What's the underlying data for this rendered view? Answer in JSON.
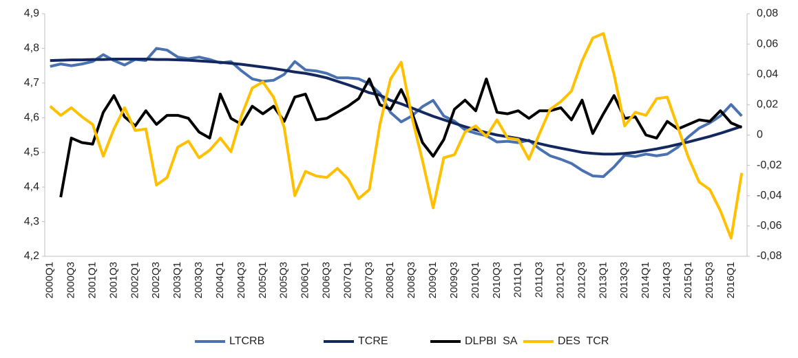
{
  "chart_data": {
    "type": "line",
    "categories": [
      "2000Q1",
      null,
      "2000Q3",
      null,
      "2001Q1",
      null,
      "2001Q3",
      null,
      "2002Q1",
      null,
      "2002Q3",
      null,
      "2003Q1",
      null,
      "2003Q3",
      null,
      "2004Q1",
      null,
      "2004Q3",
      null,
      "2005Q1",
      null,
      "2005Q3",
      null,
      "2006Q1",
      null,
      "2006Q3",
      null,
      "2007Q1",
      null,
      "2007Q3",
      null,
      "2008Q1",
      null,
      "2008Q3",
      null,
      "2009Q1",
      null,
      "2009Q3",
      null,
      "2010Q1",
      null,
      "2010Q3",
      null,
      "2011Q1",
      null,
      "2011Q3",
      null,
      "2012Q1",
      null,
      "2012Q3",
      null,
      "2013Q1",
      null,
      "2013Q3",
      null,
      "2014Q1",
      null,
      "2014Q3",
      null,
      "2015Q1",
      null,
      "2015Q3",
      null,
      "2016Q1",
      null
    ],
    "ylim": [
      4.2,
      4.9
    ],
    "yticks": [
      {
        "value": 4.2,
        "label": "4,2"
      },
      {
        "value": 4.3,
        "label": "4,3"
      },
      {
        "value": 4.4,
        "label": "4,4"
      },
      {
        "value": 4.5,
        "label": "4,5"
      },
      {
        "value": 4.6,
        "label": "4,6"
      },
      {
        "value": 4.7,
        "label": "4,7"
      },
      {
        "value": 4.8,
        "label": "4,8"
      },
      {
        "value": 4.9,
        "label": "4,9"
      }
    ],
    "y2lim": [
      -0.08,
      0.08
    ],
    "y2ticks": [
      {
        "value": -0.08,
        "label": "-0,08"
      },
      {
        "value": -0.06,
        "label": "-0,06"
      },
      {
        "value": -0.04,
        "label": "-0,04"
      },
      {
        "value": -0.02,
        "label": "-0,02"
      },
      0,
      {
        "value": 0.02,
        "label": "0,02"
      },
      {
        "value": 0.04,
        "label": "0,04"
      },
      {
        "value": 0.06,
        "label": "0,06"
      },
      {
        "value": 0.08,
        "label": "0,08"
      }
    ],
    "grid": false,
    "legend": "bottom",
    "series": [
      {
        "name": "LTCRB",
        "color": "#4a72b0",
        "axis": "y",
        "values": [
          4.748,
          4.755,
          4.75,
          4.755,
          4.762,
          4.782,
          4.765,
          4.752,
          4.768,
          4.765,
          4.8,
          4.795,
          4.775,
          4.77,
          4.775,
          4.768,
          4.758,
          4.762,
          4.735,
          4.712,
          4.705,
          4.708,
          4.725,
          4.762,
          4.738,
          4.735,
          4.728,
          4.715,
          4.715,
          4.712,
          4.698,
          4.67,
          4.615,
          4.588,
          4.605,
          4.632,
          4.65,
          4.605,
          4.59,
          4.565,
          4.555,
          4.548,
          4.53,
          4.532,
          4.528,
          4.535,
          4.51,
          4.49,
          4.48,
          4.468,
          4.448,
          4.432,
          4.43,
          4.458,
          4.492,
          4.488,
          4.495,
          4.49,
          4.495,
          4.515,
          4.545,
          4.57,
          4.585,
          4.605,
          4.638,
          4.605
        ]
      },
      {
        "name": "TCRE",
        "color": "#13285e",
        "axis": "y",
        "values": [
          4.765,
          4.766,
          4.767,
          4.767,
          4.768,
          4.768,
          4.769,
          4.769,
          4.769,
          4.769,
          4.768,
          4.768,
          4.767,
          4.766,
          4.764,
          4.762,
          4.76,
          4.757,
          4.754,
          4.75,
          4.746,
          4.742,
          4.737,
          4.732,
          4.728,
          4.722,
          4.715,
          4.705,
          4.695,
          4.684,
          4.672,
          4.665,
          4.65,
          4.64,
          4.628,
          4.616,
          4.604,
          4.594,
          4.584,
          4.574,
          4.565,
          4.557,
          4.55,
          4.545,
          4.54,
          4.533,
          4.525,
          4.518,
          4.512,
          4.506,
          4.5,
          4.497,
          4.495,
          4.495,
          4.497,
          4.5,
          4.505,
          4.51,
          4.516,
          4.523,
          4.53,
          4.538,
          4.546,
          4.555,
          4.565,
          4.575
        ]
      },
      {
        "name": "DLPBI  SA",
        "color": "#000000",
        "axis": "y2",
        "values": [
          null,
          -0.041,
          -0.002,
          -0.005,
          -0.006,
          0.015,
          0.026,
          0.012,
          0.006,
          0.016,
          0.007,
          0.013,
          0.013,
          0.011,
          0.002,
          -0.002,
          0.027,
          0.011,
          0.007,
          0.019,
          0.014,
          0.019,
          0.009,
          0.025,
          0.027,
          0.01,
          0.011,
          0.015,
          0.019,
          0.024,
          0.037,
          0.02,
          0.017,
          0.03,
          0.015,
          -0.005,
          -0.014,
          -0.003,
          0.017,
          0.023,
          0.016,
          0.037,
          0.015,
          0.014,
          0.016,
          0.011,
          0.016,
          0.016,
          0.018,
          0.01,
          0.023,
          0.001,
          0.014,
          0.026,
          0.011,
          0.012,
          0.0,
          -0.002,
          0.009,
          0.004,
          0.007,
          0.01,
          0.009,
          0.016,
          0.008,
          0.005
        ]
      },
      {
        "name": "DES  TCR",
        "color": "#ffc000",
        "axis": "y2",
        "values": [
          0.019,
          0.013,
          0.018,
          0.012,
          0.007,
          -0.014,
          0.004,
          0.018,
          0.003,
          0.004,
          -0.033,
          -0.028,
          -0.008,
          -0.004,
          -0.015,
          -0.01,
          -0.002,
          -0.011,
          0.013,
          0.031,
          0.035,
          0.025,
          0.005,
          -0.04,
          -0.024,
          -0.027,
          -0.028,
          -0.022,
          -0.029,
          -0.042,
          -0.036,
          0.007,
          0.037,
          0.048,
          0.012,
          -0.017,
          -0.048,
          -0.015,
          -0.013,
          0.002,
          0.006,
          -0.001,
          0.01,
          -0.002,
          -0.003,
          -0.016,
          0.001,
          0.017,
          0.022,
          0.029,
          0.049,
          0.064,
          0.067,
          0.04,
          0.006,
          0.015,
          0.013,
          0.024,
          0.025,
          0.005,
          -0.015,
          -0.031,
          -0.036,
          -0.05,
          -0.068,
          -0.025
        ]
      }
    ]
  }
}
